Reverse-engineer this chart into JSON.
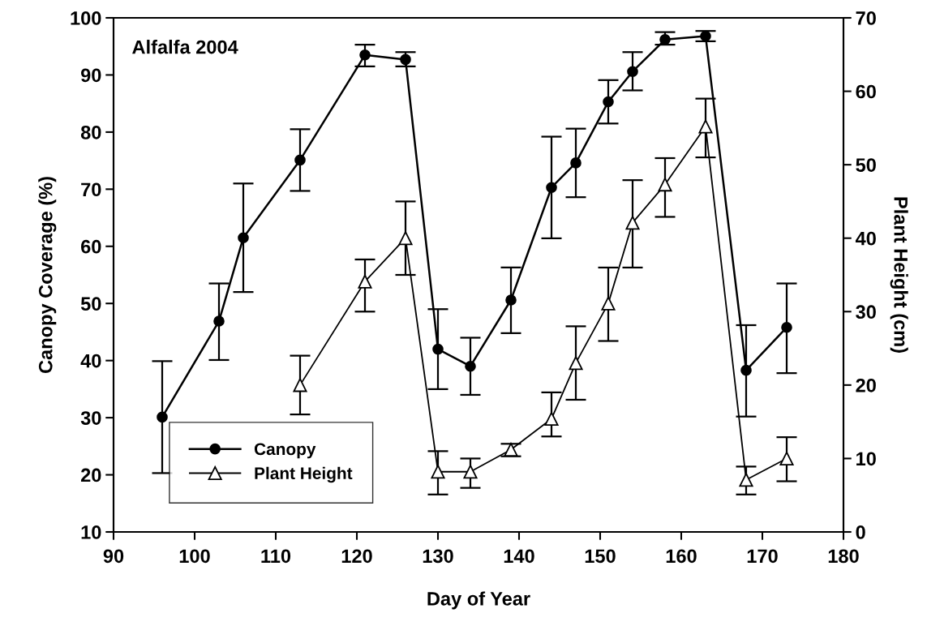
{
  "chart_data": {
    "type": "line",
    "xlabel": "Day of Year",
    "ylabel": "Canopy Coverage (%)",
    "y2label": "Plant Height (cm)",
    "annotations": [
      "Alfalfa 2004"
    ],
    "xlim": [
      90,
      180
    ],
    "xticks": [
      90,
      100,
      110,
      120,
      130,
      140,
      150,
      160,
      170,
      180
    ],
    "ylim": [
      10,
      100
    ],
    "yticks": [
      10,
      20,
      30,
      40,
      50,
      60,
      70,
      80,
      90,
      100
    ],
    "y2lim": [
      0,
      70
    ],
    "y2ticks": [
      0,
      10,
      20,
      30,
      40,
      50,
      60,
      70
    ],
    "legend": "bottom left",
    "grid": false,
    "line_style": "solid",
    "series": [
      {
        "name": "Canopy",
        "color": "#000000",
        "marker": "circle",
        "x": [
          96,
          103,
          106,
          113,
          121,
          126,
          130,
          134,
          139,
          144,
          147,
          151,
          154,
          158,
          163,
          168,
          173
        ],
        "values": [
          30.1,
          46.9,
          61.5,
          75.1,
          93.5,
          92.7,
          42,
          39,
          50.6,
          70.3,
          74.6,
          85.3,
          90.6,
          96.2,
          96.8,
          38.3,
          45.8
        ],
        "errors": [
          [
            20.3,
            39.9
          ],
          [
            40.1,
            53.5
          ],
          [
            52,
            71
          ],
          [
            69.7,
            80.5
          ],
          [
            91.5,
            95.3
          ],
          [
            91.5,
            94
          ],
          [
            35,
            49
          ],
          [
            34,
            44
          ],
          [
            44.8,
            56.3
          ],
          [
            61.4,
            79.2
          ],
          [
            68.6,
            80.6
          ],
          [
            81.5,
            89.1
          ],
          [
            87.3,
            94
          ],
          [
            95.3,
            97.5
          ],
          [
            95.9,
            97.7
          ],
          [
            30.2,
            46.2
          ],
          [
            37.8,
            53.5
          ]
        ]
      },
      {
        "name": "Plant Height",
        "color": "#000000",
        "marker": "triangle",
        "axis": "y2",
        "x": [
          113,
          121,
          126,
          130,
          134,
          139,
          144,
          147,
          151,
          154,
          158,
          163,
          168,
          173
        ],
        "values": [
          20,
          34.1,
          40,
          8.2,
          8.2,
          11.2,
          15.4,
          23,
          31.1,
          42.1,
          47.3,
          55.2,
          7.1,
          10
        ],
        "errors": [
          [
            16,
            24
          ],
          [
            30,
            37.1
          ],
          [
            35,
            45
          ],
          [
            5.1,
            11
          ],
          [
            6,
            10
          ],
          [
            10.3,
            12
          ],
          [
            13,
            19
          ],
          [
            18,
            28
          ],
          [
            26,
            36
          ],
          [
            36,
            47.9
          ],
          [
            42.9,
            50.9
          ],
          [
            51,
            59
          ],
          [
            5.1,
            8.9
          ],
          [
            6.9,
            12.9
          ]
        ]
      }
    ]
  }
}
